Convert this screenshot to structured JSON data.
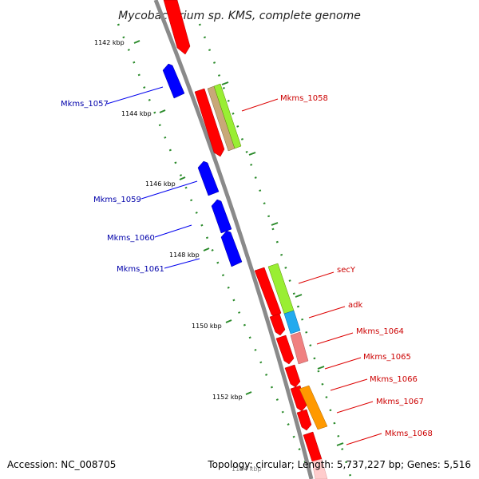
{
  "title": "Mycobacterium sp. KMS, complete genome",
  "footer": {
    "accession": "Accession: NC_008705",
    "summary": "Topology: circular; Length: 5,737,227 bp; Genes: 5,516"
  },
  "ticks": [
    {
      "label": "1142 kbp"
    },
    {
      "label": "1144 kbp"
    },
    {
      "label": "1146 kbp"
    },
    {
      "label": "1148 kbp"
    },
    {
      "label": "1150 kbp"
    },
    {
      "label": "1152 kbp"
    },
    {
      "label": "1154 kbp"
    }
  ],
  "genes": [
    {
      "label": "Mkms_1057",
      "strand": "minus",
      "color": "#0000ee"
    },
    {
      "label": "Mkms_1058",
      "strand": "plus",
      "color": "#dd0000"
    },
    {
      "label": "Mkms_1059",
      "strand": "minus",
      "color": "#0000ee"
    },
    {
      "label": "Mkms_1060",
      "strand": "minus",
      "color": "#0000ee"
    },
    {
      "label": "Mkms_1061",
      "strand": "minus",
      "color": "#0000ee"
    },
    {
      "label": "secY",
      "strand": "plus",
      "color": "#dd0000"
    },
    {
      "label": "adk",
      "strand": "plus",
      "color": "#dd0000"
    },
    {
      "label": "Mkms_1064",
      "strand": "plus",
      "color": "#dd0000"
    },
    {
      "label": "Mkms_1065",
      "strand": "plus",
      "color": "#dd0000"
    },
    {
      "label": "Mkms_1066",
      "strand": "plus",
      "color": "#dd0000"
    },
    {
      "label": "Mkms_1067",
      "strand": "plus",
      "color": "#dd0000"
    },
    {
      "label": "Mkms_1068",
      "strand": "plus",
      "color": "#dd0000"
    }
  ],
  "colors": {
    "backbone": "#8a8a8a",
    "tick": "#2a8a2a",
    "plus_gene": "#ff0000",
    "minus_gene": "#0000ff",
    "cog_green": "#99ee33",
    "cog_tan": "#c8a878",
    "cog_blue": "#22aaee",
    "cog_pink": "#f08080",
    "cog_orange": "#ff9900",
    "cog_pale": "#ffcccc"
  }
}
